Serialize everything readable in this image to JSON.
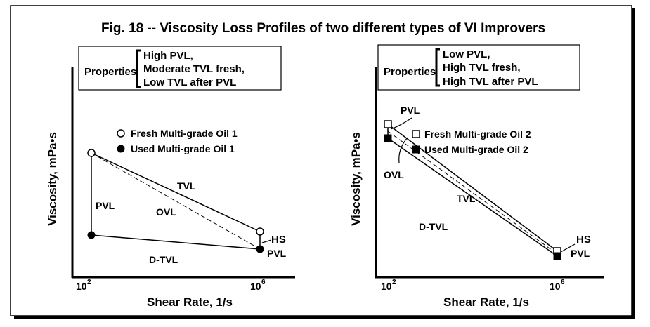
{
  "title": "Fig. 18 -- Viscosity Loss Profiles of two different types of VI Improvers",
  "panels": [
    {
      "properties_label": "Properties",
      "properties": [
        "High PVL,",
        "Moderate TVL fresh,",
        "Low TVL after PVL"
      ],
      "legend": [
        "Fresh Multi-grade Oil 1",
        "Used Multi-grade Oil 1"
      ],
      "labels": {
        "tvl": "TVL",
        "pvl": "PVL",
        "ovl": "OVL",
        "dtvl": "D-TVL",
        "hs": "HS",
        "hs_pvl": "PVL"
      },
      "y_label": "Viscosity, mPa•s",
      "x_label": "Shear Rate, 1/s",
      "xticks": [
        {
          "base": "10",
          "exponent": "2"
        },
        {
          "base": "10",
          "exponent": "6"
        }
      ]
    },
    {
      "properties_label": "Properties",
      "properties": [
        "Low PVL,",
        "High TVL fresh,",
        "High TVL after PVL"
      ],
      "legend": [
        "Fresh Multi-grade Oil 2",
        "Used Multi-grade Oil 2"
      ],
      "labels": {
        "tvl": "TVL",
        "pvl": "PVL",
        "ovl": "OVL",
        "dtvl": "D-TVL",
        "hs": "HS",
        "hs_pvl": "PVL"
      },
      "y_label": "Viscosity, mPa•s",
      "x_label": "Shear Rate, 1/s",
      "xticks": [
        {
          "base": "10",
          "exponent": "2"
        },
        {
          "base": "10",
          "exponent": "6"
        }
      ]
    }
  ]
}
